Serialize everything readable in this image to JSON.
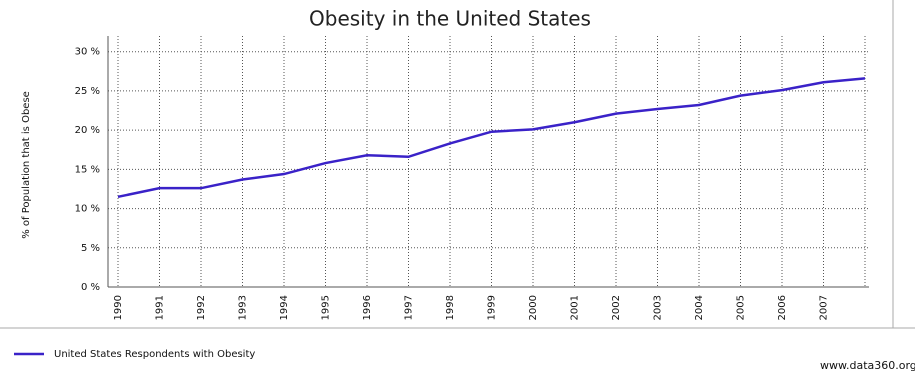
{
  "chart_data": {
    "type": "line",
    "title": "Obesity in the United States",
    "y_label": "% of Population that is Obese",
    "categories": [
      "1990",
      "1991",
      "1992",
      "1993",
      "1994",
      "1995",
      "1996",
      "1997",
      "1998",
      "1999",
      "2000",
      "2001",
      "2002",
      "2003",
      "2004",
      "2005",
      "2006",
      "2007",
      null
    ],
    "series": [
      {
        "name": "United States Respondents with Obesity",
        "color": "#3a22c8",
        "values": [
          11.5,
          12.6,
          12.6,
          13.7,
          14.4,
          15.8,
          16.8,
          16.6,
          18.3,
          19.8,
          20.1,
          21.0,
          22.1,
          22.7,
          23.2,
          24.4,
          25.1,
          26.1,
          26.6
        ]
      }
    ],
    "ylim": [
      0,
      32
    ],
    "yticks": [
      {
        "value": 0,
        "label": "0 %"
      },
      {
        "value": 5,
        "label": "5 %"
      },
      {
        "value": 10,
        "label": "10 %"
      },
      {
        "value": 15,
        "label": "15 %"
      },
      {
        "value": 20,
        "label": "20 %"
      },
      {
        "value": 25,
        "label": "25 %"
      },
      {
        "value": 30,
        "label": "30 %"
      }
    ],
    "grid": true,
    "source": "www.data360.org"
  }
}
